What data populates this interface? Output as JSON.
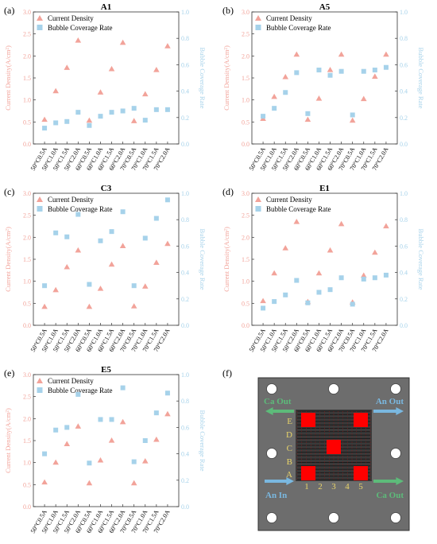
{
  "colors": {
    "current": "#f2a39a",
    "bubble": "#a6d2ea",
    "plate": "#6d6d6d",
    "plate_dark": "#3a3a3a",
    "electrode": "#ff0000",
    "ca_arrow": "#5dbb7a",
    "an_arrow": "#7ab8e0",
    "inlet_text": "#5dbb7a",
    "outlet_text": "#7ab8e0",
    "row_label": "#e8d46a"
  },
  "chart_data": [
    {
      "type": "scatter",
      "panel": "(a)",
      "title": "A1",
      "ylabel": "Current Density(A/cm²)",
      "y2label": "Bubble Coverage Rate",
      "ylim": [
        0,
        3.0
      ],
      "y2lim": [
        0,
        1.0
      ],
      "yticks": [
        "0.0",
        "0.5",
        "1.0",
        "1.5",
        "2.0",
        "2.5",
        "3.0"
      ],
      "y2ticks": [
        "0.0",
        "0.2",
        "0.4",
        "0.6",
        "0.8",
        "1.0"
      ],
      "categories": [
        "50°C0.5A",
        "50°C1.0A",
        "50°C1.5A",
        "50°C2.0A",
        "60°C0.5A",
        "60°C1.0A",
        "60°C1.5A",
        "60°C2.0A",
        "70°C0.5A",
        "70°C1.0A",
        "70°C1.5A",
        "70°C2.0A"
      ],
      "legend": [
        "Current Density",
        "Bubble Coverage Rate"
      ],
      "legend_position": "top-left",
      "series": [
        {
          "name": "Current Density",
          "axis": "left",
          "marker": "triangle",
          "values": [
            0.55,
            1.2,
            1.73,
            2.35,
            0.53,
            1.17,
            1.7,
            2.3,
            0.52,
            1.13,
            1.68,
            2.22
          ]
        },
        {
          "name": "Bubble Coverage Rate",
          "axis": "right",
          "marker": "square",
          "values": [
            0.12,
            0.16,
            0.17,
            0.24,
            0.14,
            0.21,
            0.24,
            0.25,
            0.27,
            0.18,
            0.26,
            0.26
          ]
        }
      ]
    },
    {
      "type": "scatter",
      "panel": "(b)",
      "title": "A5",
      "ylabel": "Current Density(A/cm²)",
      "y2label": "Bubble Coverage Rate",
      "ylim": [
        0,
        3.0
      ],
      "y2lim": [
        0,
        1.0
      ],
      "yticks": [
        "0.0",
        "0.5",
        "1.0",
        "1.5",
        "2.0",
        "2.5",
        "3.0"
      ],
      "y2ticks": [
        "0.0",
        "0.2",
        "0.4",
        "0.6",
        "0.8",
        "1.0"
      ],
      "categories": [
        "50°C0.5A",
        "50°C1.0A",
        "50°C1.5A",
        "50°C2.0A",
        "60°C0.5A",
        "60°C1.0A",
        "60°C1.5A",
        "60°C2.0A",
        "70°C0.5A",
        "70°C1.0A",
        "70°C1.5A",
        "70°C2.0A"
      ],
      "legend": [
        "Current Density",
        "Bubble Coverage Rate"
      ],
      "legend_position": "top-left",
      "series": [
        {
          "name": "Current Density",
          "axis": "left",
          "marker": "triangle",
          "values": [
            0.57,
            1.07,
            1.52,
            2.03,
            0.55,
            1.03,
            1.68,
            2.03,
            0.53,
            1.02,
            1.53,
            2.03
          ]
        },
        {
          "name": "Bubble Coverage Rate",
          "axis": "right",
          "marker": "square",
          "values": [
            0.21,
            0.27,
            0.39,
            0.54,
            0.23,
            0.56,
            0.52,
            0.55,
            0.22,
            0.55,
            0.56,
            0.58
          ]
        }
      ]
    },
    {
      "type": "scatter",
      "panel": "(c)",
      "title": "C3",
      "ylabel": "Current Density(A/cm²)",
      "y2label": "Bubble Coverage Rate",
      "ylim": [
        0,
        3.0
      ],
      "y2lim": [
        0,
        1.0
      ],
      "yticks": [
        "0.0",
        "0.5",
        "1.0",
        "1.5",
        "2.0",
        "2.5",
        "3.0"
      ],
      "y2ticks": [
        "0.0",
        "0.2",
        "0.4",
        "0.6",
        "0.8",
        "1.0"
      ],
      "categories": [
        "50°C0.5A",
        "50°C1.0A",
        "50°C1.5A",
        "50°C2.0A",
        "60°C0.5A",
        "60°C1.0A",
        "60°C1.5A",
        "60°C2.0A",
        "70°C0.5A",
        "70°C1.0A",
        "70°C1.5A",
        "70°C2.0A"
      ],
      "legend": [
        "Current Density",
        "Bubble Coverage Rate"
      ],
      "legend_position": "top-left",
      "series": [
        {
          "name": "Current Density",
          "axis": "left",
          "marker": "triangle",
          "values": [
            0.42,
            0.8,
            1.32,
            1.7,
            0.42,
            0.83,
            1.38,
            1.8,
            0.43,
            0.88,
            1.42,
            1.85
          ]
        },
        {
          "name": "Bubble Coverage Rate",
          "axis": "right",
          "marker": "square",
          "values": [
            0.3,
            0.7,
            0.67,
            0.84,
            0.31,
            0.64,
            0.71,
            0.86,
            0.3,
            0.66,
            0.81,
            0.95
          ]
        }
      ]
    },
    {
      "type": "scatter",
      "panel": "(d)",
      "title": "E1",
      "ylabel": "Current Density(A/cm²)",
      "y2label": "Bubble Coverage Rate",
      "ylim": [
        0,
        3.0
      ],
      "y2lim": [
        0,
        1.0
      ],
      "yticks": [
        "0.0",
        "0.5",
        "1.0",
        "1.5",
        "2.0",
        "2.5",
        "3.0"
      ],
      "y2ticks": [
        "0.0",
        "0.2",
        "0.4",
        "0.6",
        "0.8",
        "1.0"
      ],
      "categories": [
        "50°C0.5A",
        "50°C1.0A",
        "50°C1.5A",
        "50°C2.0A",
        "60°C0.5A",
        "60°C1.0A",
        "60°C1.5A",
        "60°C2.0A",
        "70°C0.5A",
        "70°C1.0A",
        "70°C1.5A",
        "70°C2.0A"
      ],
      "legend": [
        "Current Density",
        "Bubble Coverage Rate"
      ],
      "legend_position": "top-left",
      "series": [
        {
          "name": "Current Density",
          "axis": "left",
          "marker": "triangle",
          "values": [
            0.55,
            1.18,
            1.75,
            2.35,
            0.53,
            1.18,
            1.7,
            2.3,
            0.52,
            1.13,
            1.65,
            2.25
          ]
        },
        {
          "name": "Bubble Coverage Rate",
          "axis": "right",
          "marker": "square",
          "values": [
            0.13,
            0.18,
            0.23,
            0.34,
            0.17,
            0.25,
            0.27,
            0.36,
            0.16,
            0.35,
            0.36,
            0.38
          ]
        }
      ]
    },
    {
      "type": "scatter",
      "panel": "(e)",
      "title": "E5",
      "ylabel": "Current Density(A/cm²)",
      "y2label": "Bubble Coverage Rate",
      "ylim": [
        0,
        3.0
      ],
      "y2lim": [
        0,
        1.0
      ],
      "yticks": [
        "0.0",
        "0.5",
        "1.0",
        "1.5",
        "2.0",
        "2.5",
        "3.0"
      ],
      "y2ticks": [
        "0.0",
        "0.2",
        "0.4",
        "0.6",
        "0.8",
        "1.0"
      ],
      "categories": [
        "50°C0.5A",
        "50°C1.0A",
        "50°C1.5A",
        "50°C2.0A",
        "60°C0.5A",
        "60°C1.0A",
        "60°C1.5A",
        "60°C2.0A",
        "70°C0.5A",
        "70°C1.0A",
        "70°C1.5A",
        "70°C2.0A"
      ],
      "legend": [
        "Current Density",
        "Bubble Coverage Rate"
      ],
      "legend_position": "top-left",
      "series": [
        {
          "name": "Current Density",
          "axis": "left",
          "marker": "triangle",
          "values": [
            0.55,
            1.0,
            1.42,
            1.82,
            0.53,
            1.05,
            1.5,
            1.92,
            0.53,
            1.03,
            1.52,
            2.1
          ]
        },
        {
          "name": "Bubble Coverage Rate",
          "axis": "right",
          "marker": "square",
          "values": [
            0.4,
            0.58,
            0.6,
            0.85,
            0.33,
            0.66,
            0.66,
            0.9,
            0.34,
            0.5,
            0.71,
            0.86
          ]
        }
      ]
    }
  ],
  "diagram": {
    "panel": "(f)",
    "ca_out_left": "Ca Out",
    "an_out_right": "An Out",
    "an_in": "An In",
    "ca_out_bottom": "Ca Out",
    "rows": [
      "E",
      "D",
      "C",
      "B",
      "A"
    ],
    "cols": [
      "1",
      "2",
      "3",
      "4",
      "5"
    ]
  }
}
